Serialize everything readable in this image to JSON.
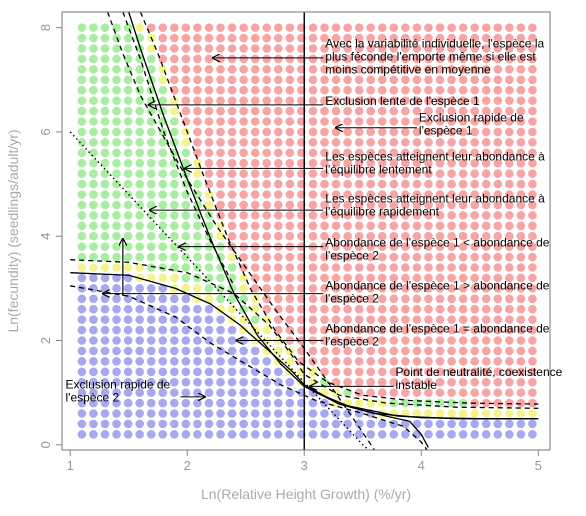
{
  "chart_data": {
    "type": "scatter",
    "xlabel": "Ln(Relative Height Growth) (%/yr)",
    "ylabel": "Ln(fecundity) (seedlings/adult/yr)",
    "xlim": [
      0.93,
      5.1
    ],
    "ylim": [
      -0.1,
      8.3
    ],
    "x_ticks": [
      1,
      2,
      3,
      4,
      5
    ],
    "y_ticks": [
      0,
      2,
      4,
      6,
      8
    ],
    "grid": false,
    "legend": "none",
    "dot_grid": {
      "x_range": [
        1.1,
        4.95
      ],
      "y_range": [
        0.2,
        8.0
      ],
      "nx": 40,
      "ny": 40
    },
    "colors": {
      "red": "#f7a4a4",
      "green": "#a8eea0",
      "blue": "#a8a8f0",
      "yellow": "#f4f48c",
      "frame": "#777777",
      "curve": "#000000"
    },
    "vline_x": 3.0,
    "lines": [
      {
        "name": "",
        "style": "dashed",
        "points": [
          [
            1.32,
            8.3
          ],
          [
            1.45,
            7.5
          ],
          [
            1.6,
            6.7
          ],
          [
            1.8,
            5.9
          ],
          [
            2.0,
            5.1
          ],
          [
            2.25,
            4.2
          ],
          [
            2.5,
            3.4
          ],
          [
            2.75,
            2.6
          ],
          [
            3.0,
            1.85
          ],
          [
            3.25,
            1.05
          ],
          [
            3.45,
            0.4
          ],
          [
            3.6,
            -0.1
          ]
        ]
      },
      {
        "name": "",
        "style": "solid",
        "points": [
          [
            1.5,
            8.3
          ],
          [
            1.6,
            7.6
          ],
          [
            1.8,
            6.3
          ],
          [
            2.0,
            5.1
          ],
          [
            2.2,
            3.95
          ],
          [
            2.4,
            2.9
          ],
          [
            2.6,
            2.1
          ],
          [
            2.8,
            1.55
          ],
          [
            3.0,
            1.12
          ],
          [
            3.3,
            0.78
          ],
          [
            3.6,
            0.6
          ],
          [
            4.0,
            0.52
          ],
          [
            4.5,
            0.5
          ],
          [
            5.0,
            0.5
          ]
        ]
      },
      {
        "name": "",
        "style": "dashed",
        "points": [
          [
            1.6,
            8.3
          ],
          [
            1.75,
            7.5
          ],
          [
            1.95,
            6.3
          ],
          [
            2.15,
            5.1
          ],
          [
            2.35,
            3.95
          ],
          [
            2.55,
            2.95
          ],
          [
            2.75,
            2.2
          ],
          [
            2.95,
            1.6
          ],
          [
            3.2,
            1.2
          ],
          [
            3.5,
            0.95
          ],
          [
            3.9,
            0.85
          ],
          [
            4.4,
            0.8
          ],
          [
            5.0,
            0.78
          ]
        ]
      },
      {
        "name": "",
        "style": "dotted",
        "points": [
          [
            1.0,
            6.0
          ],
          [
            1.5,
            4.8
          ],
          [
            2.0,
            3.6
          ],
          [
            2.5,
            2.4
          ],
          [
            3.0,
            1.2
          ],
          [
            3.5,
            0.0
          ],
          [
            3.55,
            -0.1
          ]
        ]
      },
      {
        "name": "",
        "style": "dashed",
        "points": [
          [
            1.45,
            8.3
          ],
          [
            1.6,
            7.4
          ],
          [
            1.8,
            6.0
          ],
          [
            2.0,
            4.85
          ],
          [
            2.2,
            3.9
          ],
          [
            2.4,
            3.05
          ]
        ]
      },
      {
        "name": "",
        "style": "dashed",
        "points": [
          [
            1.0,
            3.55
          ],
          [
            1.5,
            3.5
          ],
          [
            2.0,
            3.3
          ],
          [
            2.4,
            2.9
          ],
          [
            2.7,
            2.3
          ],
          [
            2.9,
            1.7
          ],
          [
            3.0,
            1.35
          ],
          [
            3.3,
            0.95
          ],
          [
            3.7,
            0.8
          ],
          [
            4.3,
            0.72
          ],
          [
            5.0,
            0.7
          ]
        ]
      },
      {
        "name": "",
        "style": "solid",
        "points": [
          [
            1.0,
            3.3
          ],
          [
            1.5,
            3.25
          ],
          [
            1.9,
            3.0
          ],
          [
            2.2,
            2.7
          ],
          [
            2.45,
            2.3
          ],
          [
            2.7,
            1.8
          ],
          [
            2.9,
            1.4
          ],
          [
            3.0,
            1.15
          ],
          [
            3.3,
            0.78
          ],
          [
            3.8,
            0.55
          ],
          [
            4.3,
            0.5
          ],
          [
            5.0,
            0.5
          ]
        ]
      },
      {
        "name": "",
        "style": "dashed",
        "points": [
          [
            1.0,
            3.05
          ],
          [
            1.5,
            2.85
          ],
          [
            1.9,
            2.45
          ],
          [
            2.2,
            1.95
          ],
          [
            2.5,
            1.55
          ],
          [
            2.8,
            1.15
          ],
          [
            3.1,
            0.85
          ],
          [
            3.5,
            0.6
          ],
          [
            3.85,
            0.35
          ],
          [
            4.0,
            0.05
          ],
          [
            4.05,
            -0.1
          ]
        ]
      },
      {
        "name": "",
        "style": "solid",
        "points": [
          [
            3.1,
            1.0
          ],
          [
            3.4,
            0.72
          ],
          [
            3.7,
            0.55
          ],
          [
            3.9,
            0.45
          ],
          [
            4.0,
            0.2
          ],
          [
            4.06,
            -0.05
          ]
        ]
      }
    ],
    "annotations": [
      {
        "lines": [
          "Avec la variabilité individuelle, l'espèce la",
          "plus féconde l'emporte même si elle est",
          "moins compétitive en moyenne"
        ],
        "text_x": 3.18,
        "text_y": 7.62,
        "arrow_from": [
          3.18,
          7.42
        ],
        "arrow_to": [
          2.22,
          7.42
        ]
      },
      {
        "lines": [
          "Exclusion lente de l'espèce 1"
        ],
        "text_x": 3.18,
        "text_y": 6.52,
        "arrow_from": [
          3.18,
          6.52
        ],
        "arrow_to": [
          1.67,
          6.52
        ]
      },
      {
        "lines": [
          "Exclusion rapide de",
          "l'espèce 1"
        ],
        "text_x": 3.98,
        "text_y": 6.2,
        "arrow_from": [
          3.98,
          6.08
        ],
        "arrow_to": [
          3.27,
          6.08
        ]
      },
      {
        "lines": [
          "Les espèces atteignent leur abondance à",
          "l'équilibre lentement"
        ],
        "text_x": 3.18,
        "text_y": 5.45,
        "arrow_from": [
          3.18,
          5.3
        ],
        "arrow_to": [
          1.98,
          5.3
        ]
      },
      {
        "lines": [
          "Les espèces atteignent leur abondance à",
          "l'équilibre rapidement"
        ],
        "text_x": 3.18,
        "text_y": 4.65,
        "arrow_from": [
          3.18,
          4.5
        ],
        "arrow_to": [
          1.68,
          4.5
        ]
      },
      {
        "lines": [
          "Abondance de l'espèce 1 < abondance de",
          "l'espèce 2"
        ],
        "text_x": 3.18,
        "text_y": 3.8,
        "arrow_from": [
          3.18,
          3.8
        ],
        "arrow_to": [
          1.93,
          3.8
        ]
      },
      {
        "lines": [
          "Abondance de l'espèce 1 > abondance de",
          "l'espèce 2"
        ],
        "text_x": 3.18,
        "text_y": 2.98,
        "arrow_from": [
          3.18,
          2.9
        ],
        "arrow_to": [
          1.28,
          2.9
        ]
      },
      {
        "lines": [
          "Abondance de l'espèce 1 = abondance de",
          "l'espèce 2"
        ],
        "text_x": 3.18,
        "text_y": 2.15,
        "arrow_from": [
          3.18,
          2.0
        ],
        "arrow_to": [
          2.42,
          2.0
        ]
      },
      {
        "lines": [
          "Point de neutralité, coexistence",
          "instable"
        ],
        "text_x": 3.78,
        "text_y": 1.32,
        "arrow_from": [
          3.78,
          1.12
        ],
        "arrow_to": [
          3.05,
          1.12
        ]
      },
      {
        "lines": [
          "Exclusion rapide de",
          "l'espèce 2"
        ],
        "text_x": 0.96,
        "text_y": 1.08,
        "arrow_from": [
          1.96,
          0.92
        ],
        "arrow_to": [
          2.15,
          0.92
        ]
      }
    ],
    "vertical_arrow": {
      "x": 1.45,
      "from_y": 2.85,
      "to_y": 3.95
    }
  }
}
